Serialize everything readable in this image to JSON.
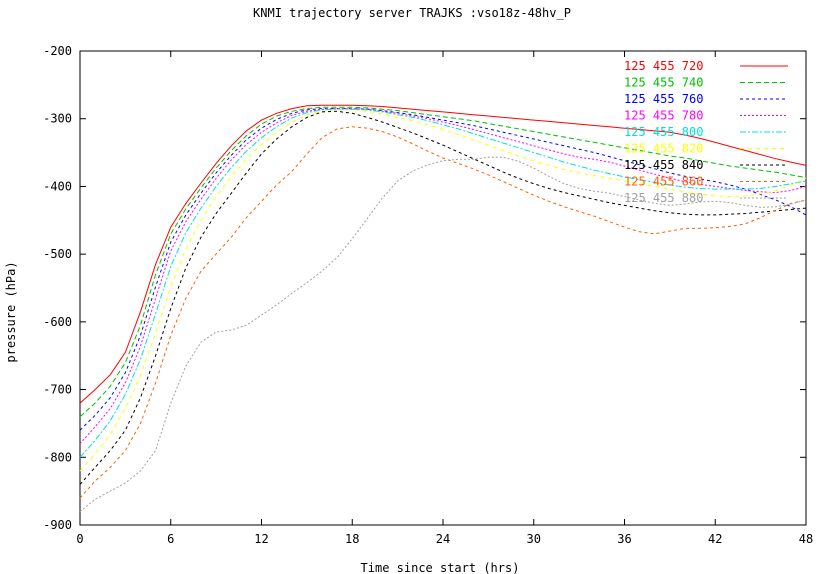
{
  "chart_data": {
    "type": "line",
    "title": "KNMI trajectory server TRAJKS :vso18z-48hv_P",
    "xlabel": "Time since start (hrs)",
    "ylabel": "pressure (hPa)",
    "xlim": [
      0,
      48
    ],
    "ylim": [
      -900,
      -200
    ],
    "xticks": [
      0,
      6,
      12,
      18,
      24,
      30,
      36,
      42,
      48
    ],
    "yticks": [
      -900,
      -800,
      -700,
      -600,
      -500,
      -400,
      -300,
      -200
    ],
    "xtick_labels": [
      "0",
      "6",
      "12",
      "18",
      "24",
      "30",
      "36",
      "42",
      "48"
    ],
    "ytick_labels": [
      "-900",
      "-800",
      "-700",
      "-600",
      "-500",
      "-400",
      "-300",
      "-200"
    ],
    "grid": false,
    "legend_position": "top-right",
    "x": [
      0,
      1,
      2,
      3,
      4,
      5,
      6,
      7,
      8,
      9,
      10,
      11,
      12,
      13,
      14,
      15,
      16,
      17,
      18,
      19,
      20,
      21,
      22,
      23,
      24,
      25,
      26,
      27,
      28,
      29,
      30,
      31,
      32,
      33,
      34,
      35,
      36,
      37,
      38,
      39,
      40,
      41,
      42,
      43,
      44,
      45,
      46,
      47,
      48
    ],
    "series": [
      {
        "name": "125 455 720",
        "color": "#ff0000",
        "dash": "solid",
        "values": [
          -720,
          -700,
          -678,
          -645,
          -585,
          -515,
          -460,
          -425,
          -395,
          -366,
          -340,
          -318,
          -302,
          -292,
          -285,
          -281,
          -280,
          -280,
          -280,
          -281,
          -282,
          -284,
          -286,
          -288,
          -290,
          -292,
          -294,
          -296,
          -298,
          -300,
          -302,
          -304,
          -306,
          -308,
          -310,
          -312,
          -314,
          -316,
          -318,
          -320,
          -324,
          -329,
          -335,
          -341,
          -347,
          -353,
          -359,
          -364,
          -369
        ]
      },
      {
        "name": "125 455 740",
        "color": "#00c000",
        "dash": "5,3",
        "values": [
          -740,
          -720,
          -695,
          -660,
          -605,
          -530,
          -470,
          -433,
          -402,
          -373,
          -347,
          -325,
          -308,
          -296,
          -289,
          -285,
          -283,
          -283,
          -283,
          -284,
          -286,
          -288,
          -291,
          -294,
          -297,
          -300,
          -303,
          -307,
          -311,
          -315,
          -319,
          -323,
          -327,
          -331,
          -335,
          -339,
          -343,
          -347,
          -351,
          -355,
          -358,
          -362,
          -366,
          -370,
          -373,
          -376,
          -379,
          -383,
          -387
        ]
      },
      {
        "name": "125 455 760",
        "color": "#0000ff",
        "dash": "3,3",
        "values": [
          -760,
          -738,
          -712,
          -675,
          -620,
          -548,
          -482,
          -442,
          -410,
          -380,
          -354,
          -331,
          -314,
          -301,
          -292,
          -287,
          -285,
          -285,
          -285,
          -286,
          -288,
          -291,
          -294,
          -298,
          -302,
          -306,
          -310,
          -315,
          -320,
          -325,
          -330,
          -335,
          -340,
          -345,
          -350,
          -356,
          -362,
          -368,
          -374,
          -380,
          -385,
          -389,
          -393,
          -398,
          -404,
          -412,
          -420,
          -430,
          -442
        ]
      },
      {
        "name": "125 455 780",
        "color": "#ff00ff",
        "dash": "2,2",
        "values": [
          -780,
          -755,
          -728,
          -690,
          -636,
          -565,
          -495,
          -452,
          -419,
          -388,
          -361,
          -338,
          -320,
          -306,
          -295,
          -289,
          -286,
          -285,
          -285,
          -286,
          -289,
          -292,
          -296,
          -300,
          -305,
          -310,
          -316,
          -322,
          -328,
          -334,
          -340,
          -346,
          -352,
          -357,
          -360,
          -364,
          -370,
          -376,
          -382,
          -388,
          -393,
          -397,
          -400,
          -403,
          -406,
          -408,
          -409,
          -406,
          -400
        ]
      },
      {
        "name": "125 455 800",
        "color": "#00e0e0",
        "dash": "6,2,2,2",
        "values": [
          -800,
          -775,
          -746,
          -707,
          -655,
          -588,
          -518,
          -468,
          -432,
          -400,
          -372,
          -348,
          -328,
          -312,
          -299,
          -291,
          -287,
          -286,
          -286,
          -287,
          -290,
          -294,
          -298,
          -303,
          -309,
          -315,
          -322,
          -329,
          -336,
          -343,
          -350,
          -357,
          -364,
          -370,
          -376,
          -381,
          -386,
          -390,
          -394,
          -398,
          -401,
          -403,
          -404,
          -404,
          -404,
          -403,
          -400,
          -396,
          -392
        ]
      },
      {
        "name": "125 455 820",
        "color": "#ffff00",
        "dash": "4,4",
        "values": [
          -820,
          -795,
          -766,
          -728,
          -679,
          -616,
          -548,
          -492,
          -450,
          -415,
          -385,
          -360,
          -338,
          -320,
          -305,
          -294,
          -289,
          -287,
          -287,
          -289,
          -293,
          -298,
          -303,
          -309,
          -316,
          -323,
          -331,
          -339,
          -347,
          -355,
          -362,
          -369,
          -375,
          -380,
          -384,
          -388,
          -392,
          -396,
          -400,
          -404,
          -408,
          -411,
          -414,
          -415,
          -414,
          -411,
          -406,
          -398,
          -388
        ]
      },
      {
        "name": "125 455 840",
        "color": "#000000",
        "dash": "3,3",
        "values": [
          -840,
          -815,
          -790,
          -760,
          -712,
          -650,
          -580,
          -520,
          -475,
          -440,
          -410,
          -380,
          -352,
          -330,
          -312,
          -298,
          -290,
          -289,
          -292,
          -298,
          -305,
          -313,
          -321,
          -330,
          -339,
          -349,
          -359,
          -369,
          -379,
          -388,
          -396,
          -403,
          -409,
          -414,
          -419,
          -424,
          -428,
          -432,
          -436,
          -439,
          -441,
          -442,
          -442,
          -441,
          -440,
          -438,
          -436,
          -434,
          -432
        ]
      },
      {
        "name": "125 455 860",
        "color": "#ff6000",
        "dash": "3,3",
        "values": [
          -860,
          -835,
          -815,
          -790,
          -750,
          -690,
          -620,
          -565,
          -525,
          -500,
          -475,
          -446,
          -422,
          -398,
          -378,
          -352,
          -328,
          -315,
          -312,
          -314,
          -319,
          -327,
          -337,
          -348,
          -358,
          -366,
          -374,
          -383,
          -393,
          -403,
          -413,
          -422,
          -430,
          -437,
          -444,
          -452,
          -460,
          -467,
          -470,
          -466,
          -462,
          -462,
          -461,
          -459,
          -455,
          -446,
          -435,
          -425,
          -420
        ]
      },
      {
        "name": "125 455 880",
        "color": "#a0a0a0",
        "dash": "2,2",
        "values": [
          -880,
          -862,
          -850,
          -838,
          -820,
          -790,
          -720,
          -665,
          -630,
          -615,
          -612,
          -605,
          -590,
          -575,
          -558,
          -542,
          -525,
          -505,
          -477,
          -447,
          -417,
          -392,
          -377,
          -368,
          -362,
          -360,
          -360,
          -357,
          -357,
          -363,
          -373,
          -385,
          -396,
          -403,
          -407,
          -410,
          -415,
          -420,
          -425,
          -428,
          -426,
          -423,
          -422,
          -424,
          -428,
          -431,
          -430,
          -426,
          -420
        ]
      }
    ]
  }
}
